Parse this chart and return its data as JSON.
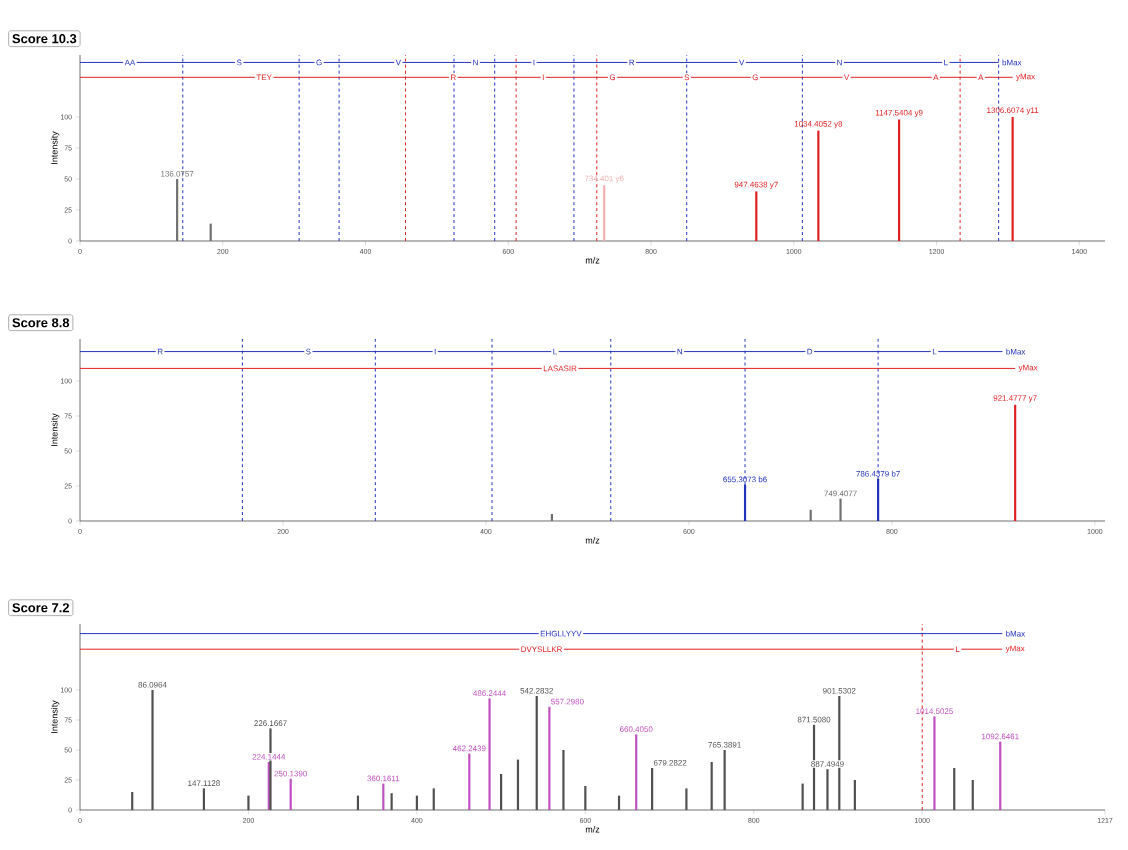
{
  "chart_data": [
    {
      "type": "bar",
      "title": "Score 10.3",
      "xlabel": "m/z",
      "ylabel": "Intensity",
      "xlim": [
        0,
        1436
      ],
      "ylim": [
        0,
        150
      ],
      "xticks": [
        0,
        200,
        400,
        600,
        800,
        1000,
        1200,
        1400
      ],
      "yticks": [
        0,
        25,
        50,
        75,
        100
      ],
      "series": [
        {
          "x": [
            136.0757,
            183.1,
            734.401,
            947.4638,
            1034.4052,
            1147.5404,
            1306.6074
          ],
          "values": [
            50,
            14,
            45,
            40,
            89,
            98,
            100
          ],
          "colors": [
            "#707070",
            "#707070",
            "#f4b0b0",
            "#e02020",
            "#e02020",
            "#e02020",
            "#e02020"
          ]
        },
        {
          "type": "line",
          "name": "bMax",
          "color": "#2233bb",
          "x": [
            0,
            1287
          ],
          "values": [
            144,
            144
          ]
        },
        {
          "type": "line",
          "name": "yMax",
          "color": "#e02020",
          "x": [
            0,
            1306.6074
          ],
          "values": [
            132,
            132
          ]
        }
      ],
      "ref_lines": [
        {
          "axis": "x",
          "value": 144,
          "color": "#2233bb",
          "line_style": "dashed"
        },
        {
          "axis": "x",
          "value": 307,
          "color": "#2233bb",
          "line_style": "dashed"
        },
        {
          "axis": "x",
          "value": 363,
          "color": "#2233bb",
          "line_style": "dashed"
        },
        {
          "axis": "x",
          "value": 524,
          "color": "#2233bb",
          "line_style": "dashed"
        },
        {
          "axis": "x",
          "value": 581,
          "color": "#2233bb",
          "line_style": "dashed"
        },
        {
          "axis": "x",
          "value": 692,
          "color": "#2233bb",
          "line_style": "dashed"
        },
        {
          "axis": "x",
          "value": 850,
          "color": "#2233bb",
          "line_style": "dashed"
        },
        {
          "axis": "x",
          "value": 1012,
          "color": "#2233bb",
          "line_style": "dashed"
        },
        {
          "axis": "x",
          "value": 1287,
          "color": "#2233bb",
          "line_style": "dashed"
        },
        {
          "axis": "x",
          "value": 456,
          "color": "#e02020",
          "line_style": "dashed"
        },
        {
          "axis": "x",
          "value": 611,
          "color": "#e02020",
          "line_style": "dashed"
        },
        {
          "axis": "x",
          "value": 724,
          "color": "#e02020",
          "line_style": "dashed"
        },
        {
          "axis": "x",
          "value": 1233,
          "color": "#e02020",
          "line_style": "dashed"
        }
      ],
      "annotations": [
        {
          "text": "136.0757",
          "x": 136.0757,
          "y": 50
        },
        {
          "text": "734.401 y6",
          "x": 734.401,
          "y": 45
        },
        {
          "text": "947.4638 y7",
          "x": 947.4638,
          "y": 40
        },
        {
          "text": "1034.4052 y8",
          "x": 1034.4052,
          "y": 89
        },
        {
          "text": "1147.5404 y9",
          "x": 1147.5404,
          "y": 98
        },
        {
          "text": "1306.6074 y11",
          "x": 1306.6074,
          "y": 100
        },
        {
          "text": "AA",
          "x": 70,
          "y": 144
        },
        {
          "text": "S",
          "x": 223,
          "y": 144
        },
        {
          "text": "G",
          "x": 335,
          "y": 144
        },
        {
          "text": "V",
          "x": 446,
          "y": 144
        },
        {
          "text": "N",
          "x": 554,
          "y": 144
        },
        {
          "text": "I",
          "x": 636,
          "y": 144
        },
        {
          "text": "R",
          "x": 773,
          "y": 144
        },
        {
          "text": "V",
          "x": 927,
          "y": 144
        },
        {
          "text": "N",
          "x": 1064,
          "y": 144
        },
        {
          "text": "L",
          "x": 1213,
          "y": 144
        },
        {
          "text": "TEY",
          "x": 258,
          "y": 132
        },
        {
          "text": "R",
          "x": 523,
          "y": 132
        },
        {
          "text": "I",
          "x": 649,
          "y": 132
        },
        {
          "text": "G",
          "x": 746,
          "y": 132
        },
        {
          "text": "S",
          "x": 850,
          "y": 132
        },
        {
          "text": "G",
          "x": 946,
          "y": 132
        },
        {
          "text": "V",
          "x": 1074,
          "y": 132
        },
        {
          "text": "A",
          "x": 1199,
          "y": 132
        },
        {
          "text": "A",
          "x": 1262,
          "y": 132
        }
      ]
    },
    {
      "type": "bar",
      "title": "Score 8.8",
      "xlabel": "m/z",
      "ylabel": "Intensity",
      "xlim": [
        0,
        1010
      ],
      "ylim": [
        0,
        130
      ],
      "xticks": [
        0,
        200,
        400,
        600,
        800,
        1000
      ],
      "yticks": [
        0,
        25,
        50,
        75,
        100
      ],
      "series": [
        {
          "x": [
            465,
            655.3073,
            720,
            749.4077,
            786.4379,
            921.4777
          ],
          "values": [
            5,
            26,
            8,
            16,
            30,
            83
          ],
          "colors": [
            "#707070",
            "#2233bb",
            "#707070",
            "#707070",
            "#2233bb",
            "#e02020"
          ]
        },
        {
          "type": "line",
          "name": "bMax",
          "color": "#2233bb",
          "x": [
            0,
            909
          ],
          "values": [
            121,
            121
          ]
        },
        {
          "type": "line",
          "name": "yMax",
          "color": "#e02020",
          "x": [
            0,
            921.4777
          ],
          "values": [
            109,
            109
          ]
        }
      ],
      "ref_lines": [
        {
          "axis": "x",
          "value": 160,
          "color": "#2233bb",
          "line_style": "dashed"
        },
        {
          "axis": "x",
          "value": 291,
          "color": "#2233bb",
          "line_style": "dashed"
        },
        {
          "axis": "x",
          "value": 406,
          "color": "#2233bb",
          "line_style": "dashed"
        },
        {
          "axis": "x",
          "value": 523,
          "color": "#2233bb",
          "line_style": "dashed"
        },
        {
          "axis": "x",
          "value": 655.3073,
          "color": "#2233bb",
          "line_style": "dashed"
        },
        {
          "axis": "x",
          "value": 786.4379,
          "color": "#2233bb",
          "line_style": "dashed"
        }
      ],
      "annotations": [
        {
          "text": "655.3073 b6",
          "x": 655.3073,
          "y": 26
        },
        {
          "text": "749.4077",
          "x": 749.4077,
          "y": 16
        },
        {
          "text": "786.4379 b7",
          "x": 786.4379,
          "y": 30
        },
        {
          "text": "921.4777 y7",
          "x": 921.4777,
          "y": 83
        },
        {
          "text": "R",
          "x": 79,
          "y": 121
        },
        {
          "text": "S",
          "x": 225,
          "y": 121
        },
        {
          "text": "I",
          "x": 350,
          "y": 121
        },
        {
          "text": "L",
          "x": 468,
          "y": 121
        },
        {
          "text": "N",
          "x": 591,
          "y": 121
        },
        {
          "text": "D",
          "x": 719,
          "y": 121
        },
        {
          "text": "L",
          "x": 842,
          "y": 121
        },
        {
          "text": "LASASIR",
          "x": 473,
          "y": 109
        }
      ]
    },
    {
      "type": "bar",
      "title": "Score 7.2",
      "xlabel": "m/z",
      "ylabel": "Intensity",
      "xlim": [
        0,
        1217
      ],
      "ylim": [
        0,
        155
      ],
      "xticks": [
        0,
        200,
        400,
        600,
        800,
        1000,
        1217
      ],
      "yticks": [
        0,
        25,
        50,
        75,
        100
      ],
      "series": [
        {
          "x": [
            62,
            86.0964,
            147.1128,
            200,
            224.1444,
            226.1667,
            250.139,
            330,
            360.1611,
            370,
            400,
            420,
            462.2439,
            486.2444,
            500,
            520,
            542.2832,
            557.298,
            574,
            600,
            640,
            660.405,
            679.2822,
            720,
            750,
            765.3891,
            858,
            871.508,
            887.4949,
            901.5302,
            920,
            1014.5025,
            1038,
            1060,
            1092.6461
          ],
          "values": [
            15,
            100,
            18,
            12,
            40,
            68,
            26,
            12,
            22,
            14,
            12,
            18,
            47,
            93,
            30,
            42,
            95,
            86,
            50,
            20,
            12,
            63,
            35,
            18,
            40,
            50,
            22,
            71,
            34,
            95,
            25,
            78,
            35,
            25,
            57
          ],
          "colors": [
            "#505050",
            "#505050",
            "#505050",
            "#505050",
            "#c050c0",
            "#505050",
            "#c050c0",
            "#505050",
            "#c050c0",
            "#505050",
            "#505050",
            "#505050",
            "#c050c0",
            "#c050c0",
            "#505050",
            "#505050",
            "#505050",
            "#c050c0",
            "#505050",
            "#505050",
            "#505050",
            "#c050c0",
            "#505050",
            "#505050",
            "#505050",
            "#505050",
            "#505050",
            "#505050",
            "#505050",
            "#505050",
            "#505050",
            "#c050c0",
            "#505050",
            "#505050",
            "#c050c0"
          ]
        },
        {
          "type": "line",
          "name": "bMax",
          "color": "#2233bb",
          "x": [
            0,
            1095
          ],
          "values": [
            147,
            147
          ]
        },
        {
          "type": "line",
          "name": "yMax",
          "color": "#e02020",
          "x": [
            0,
            1095
          ],
          "values": [
            134,
            134
          ]
        }
      ],
      "ref_lines": [
        {
          "axis": "x",
          "value": 1000,
          "color": "#e02020",
          "line_style": "dashed"
        }
      ],
      "annotations": [
        {
          "text": "86.0964",
          "x": 86.0964,
          "y": 100
        },
        {
          "text": "147.1128",
          "x": 147.1128,
          "y": 18
        },
        {
          "text": "224.1444",
          "x": 224.1444,
          "y": 40
        },
        {
          "text": "226.1667",
          "x": 226.1667,
          "y": 68
        },
        {
          "text": "250.1390",
          "x": 250.139,
          "y": 26
        },
        {
          "text": "360.1611",
          "x": 360.1611,
          "y": 22
        },
        {
          "text": "462.2439",
          "x": 462.2439,
          "y": 47
        },
        {
          "text": "486.2444",
          "x": 486.2444,
          "y": 93
        },
        {
          "text": "542.2832",
          "x": 542.2832,
          "y": 95
        },
        {
          "text": "557.2980",
          "x": 557.298,
          "y": 86
        },
        {
          "text": "660.4050",
          "x": 660.405,
          "y": 63
        },
        {
          "text": "679.2822",
          "x": 679.2822,
          "y": 35
        },
        {
          "text": "765.3891",
          "x": 765.3891,
          "y": 50
        },
        {
          "text": "871.5080",
          "x": 871.508,
          "y": 71
        },
        {
          "text": "887.4949",
          "x": 887.4949,
          "y": 34
        },
        {
          "text": "901.5302",
          "x": 901.5302,
          "y": 95
        },
        {
          "text": "1014.5025",
          "x": 1014.5025,
          "y": 78
        },
        {
          "text": "1092.6461",
          "x": 1092.6461,
          "y": 57
        },
        {
          "text": "EHGLLYYV",
          "x": 571,
          "y": 147
        },
        {
          "text": "DVYSLLKR",
          "x": 548,
          "y": 134
        },
        {
          "text": "L",
          "x": 1042,
          "y": 134
        }
      ]
    }
  ]
}
